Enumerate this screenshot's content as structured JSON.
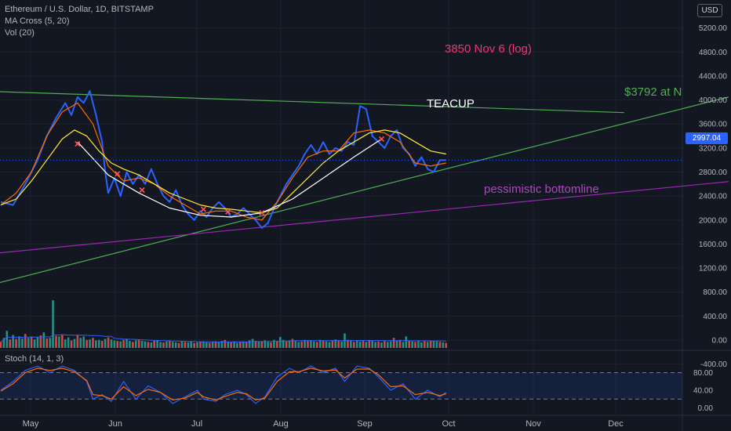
{
  "header": {
    "symbol_line": "Ethereum / U.S. Dollar, 1D, BITSTAMP",
    "ma_line": "MA Cross (5, 20)",
    "vol_line": "Vol (20)",
    "stoch_line": "Stoch (14, 1, 3)",
    "currency_badge": "USD"
  },
  "annotations": {
    "target_note": "3850 Nov 6 (log)",
    "teacup": "TEACUP",
    "trend_target": "$3792 at N",
    "bottomline": "pessimistic bottomline"
  },
  "colors": {
    "background": "#131722",
    "price_line": "#2962ff",
    "ma_fast": "#ff6d00",
    "ma_slow": "#ffeb3b",
    "cup_curve": "#ffffff",
    "trendline": "#4caf50",
    "bottomline": "#9c27b0",
    "target_note": "#f23672",
    "vol_up": "#26a69a",
    "vol_down": "#ef5350",
    "price_badge": "#2962ff"
  },
  "chart_data": {
    "type": "line",
    "x_ticks": [
      "May",
      "Jun",
      "Jul",
      "Aug",
      "Sep",
      "Oct",
      "Nov",
      "Dec"
    ],
    "price_axis": {
      "ticks": [
        5200,
        4800,
        4400,
        4000,
        3600,
        3200,
        2800,
        2400,
        2000,
        1600,
        1200,
        800,
        400,
        0,
        -400
      ],
      "tick_labels": [
        "5200.00",
        "4800.00",
        "4400.00",
        "4000.00",
        "3600.00",
        "3200.00",
        "2800.00",
        "2400.00",
        "2000.00",
        "1600.00",
        "1200.00",
        "800.00",
        "400.00",
        "0.00",
        "-400.00"
      ],
      "ylim": [
        -400,
        5400
      ]
    },
    "last_price": 2997.04,
    "last_price_label": "2997.04",
    "series": [
      {
        "name": "Price",
        "points": [
          [
            0,
            2300
          ],
          [
            4,
            2250
          ],
          [
            8,
            2600
          ],
          [
            12,
            3000
          ],
          [
            15,
            3400
          ],
          [
            18,
            3700
          ],
          [
            21,
            3950
          ],
          [
            23,
            3750
          ],
          [
            25,
            4050
          ],
          [
            27,
            3950
          ],
          [
            29,
            4150
          ],
          [
            31,
            3750
          ],
          [
            33,
            3300
          ],
          [
            34,
            2800
          ],
          [
            35,
            2450
          ],
          [
            37,
            2700
          ],
          [
            39,
            2400
          ],
          [
            41,
            2800
          ],
          [
            43,
            2600
          ],
          [
            45,
            2750
          ],
          [
            47,
            2600
          ],
          [
            49,
            2850
          ],
          [
            51,
            2600
          ],
          [
            53,
            2400
          ],
          [
            55,
            2300
          ],
          [
            57,
            2500
          ],
          [
            59,
            2250
          ],
          [
            61,
            2100
          ],
          [
            63,
            2000
          ],
          [
            65,
            2150
          ],
          [
            67,
            2050
          ],
          [
            69,
            2200
          ],
          [
            71,
            2300
          ],
          [
            73,
            2200
          ],
          [
            75,
            2050
          ],
          [
            77,
            2100
          ],
          [
            79,
            2200
          ],
          [
            81,
            2100
          ],
          [
            83,
            2000
          ],
          [
            85,
            1870
          ],
          [
            87,
            1950
          ],
          [
            89,
            2200
          ],
          [
            91,
            2400
          ],
          [
            93,
            2600
          ],
          [
            95,
            2750
          ],
          [
            97,
            2900
          ],
          [
            99,
            3100
          ],
          [
            101,
            3250
          ],
          [
            103,
            3100
          ],
          [
            105,
            3300
          ],
          [
            107,
            3100
          ],
          [
            109,
            3200
          ],
          [
            111,
            3150
          ],
          [
            113,
            3300
          ],
          [
            115,
            3250
          ],
          [
            117,
            3900
          ],
          [
            119,
            3850
          ],
          [
            121,
            3400
          ],
          [
            123,
            3300
          ],
          [
            125,
            3200
          ],
          [
            127,
            3400
          ],
          [
            129,
            3500
          ],
          [
            131,
            3200
          ],
          [
            133,
            3100
          ],
          [
            135,
            2900
          ],
          [
            137,
            3050
          ],
          [
            139,
            2850
          ],
          [
            141,
            2800
          ],
          [
            143,
            3000
          ],
          [
            145,
            2997
          ]
        ]
      },
      {
        "name": "",
        "points": [
          [
            0,
            2250
          ],
          [
            5,
            2450
          ],
          [
            10,
            2800
          ],
          [
            15,
            3400
          ],
          [
            20,
            3800
          ],
          [
            25,
            3950
          ],
          [
            30,
            3600
          ],
          [
            35,
            2900
          ],
          [
            40,
            2650
          ],
          [
            45,
            2700
          ],
          [
            50,
            2600
          ],
          [
            55,
            2400
          ],
          [
            60,
            2250
          ],
          [
            65,
            2100
          ],
          [
            70,
            2150
          ],
          [
            75,
            2150
          ],
          [
            80,
            2050
          ],
          [
            85,
            2000
          ],
          [
            90,
            2300
          ],
          [
            95,
            2700
          ],
          [
            100,
            3050
          ],
          [
            105,
            3150
          ],
          [
            110,
            3150
          ],
          [
            115,
            3450
          ],
          [
            120,
            3500
          ],
          [
            125,
            3450
          ],
          [
            130,
            3300
          ],
          [
            135,
            2950
          ],
          [
            140,
            2900
          ],
          [
            145,
            2950
          ]
        ]
      },
      {
        "name": "",
        "points": [
          [
            0,
            2250
          ],
          [
            5,
            2350
          ],
          [
            10,
            2650
          ],
          [
            15,
            3000
          ],
          [
            20,
            3350
          ],
          [
            24,
            3500
          ],
          [
            28,
            3400
          ],
          [
            32,
            3150
          ],
          [
            36,
            2950
          ],
          [
            40,
            2850
          ],
          [
            45,
            2750
          ],
          [
            50,
            2600
          ],
          [
            55,
            2450
          ],
          [
            60,
            2350
          ],
          [
            65,
            2250
          ],
          [
            70,
            2200
          ],
          [
            75,
            2180
          ],
          [
            80,
            2150
          ],
          [
            85,
            2120
          ],
          [
            90,
            2200
          ],
          [
            95,
            2450
          ],
          [
            100,
            2700
          ],
          [
            105,
            2950
          ],
          [
            110,
            3150
          ],
          [
            115,
            3300
          ],
          [
            120,
            3450
          ],
          [
            125,
            3500
          ],
          [
            130,
            3450
          ],
          [
            135,
            3300
          ],
          [
            140,
            3150
          ],
          [
            145,
            3100
          ]
        ]
      },
      {
        "name": "",
        "points": [
          [
            25,
            3300
          ],
          [
            35,
            2750
          ],
          [
            45,
            2450
          ],
          [
            55,
            2200
          ],
          [
            65,
            2080
          ],
          [
            75,
            2050
          ],
          [
            85,
            2120
          ],
          [
            95,
            2350
          ],
          [
            105,
            2700
          ],
          [
            115,
            3050
          ],
          [
            124,
            3350
          ]
        ]
      }
    ],
    "cross_markers": [
      [
        25,
        3270
      ],
      [
        38,
        2770
      ],
      [
        46,
        2500
      ],
      [
        66,
        2180
      ],
      [
        74,
        2140
      ],
      [
        85,
        2120
      ],
      [
        124,
        3350
      ]
    ],
    "trendlines": [
      {
        "name": "",
        "from": [
          -1,
          4140
        ],
        "to": [
          203,
          3790
        ]
      },
      {
        "name": "",
        "from": [
          -1,
          950
        ],
        "to": [
          237,
          4050
        ]
      },
      {
        "name": "",
        "from": [
          -1,
          1450
        ],
        "to": [
          237,
          2640
        ]
      }
    ],
    "volume": [
      120,
      200,
      340,
      170,
      260,
      180,
      230,
      190,
      280,
      200,
      230,
      170,
      210,
      250,
      310,
      190,
      200,
      950,
      240,
      230,
      260,
      170,
      210,
      150,
      180,
      260,
      200,
      230,
      160,
      170,
      200,
      150,
      160,
      140,
      180,
      210,
      170,
      150,
      140,
      130,
      160,
      180,
      140,
      120,
      150,
      170,
      140,
      130,
      120,
      110,
      140,
      150,
      120,
      110,
      130,
      150,
      120,
      110,
      100,
      140,
      120,
      110,
      130,
      100,
      110,
      120,
      130,
      110,
      100,
      120,
      130,
      110,
      140,
      160,
      120,
      110,
      130,
      100,
      120,
      130,
      110,
      150,
      180,
      140,
      120,
      130,
      150,
      120,
      110,
      160,
      140,
      220,
      160,
      130,
      150,
      180,
      140,
      120,
      130,
      160,
      140,
      150,
      130,
      120,
      160,
      140,
      130,
      120,
      150,
      170,
      140,
      130,
      290,
      160,
      140,
      120,
      150,
      130,
      140,
      120,
      160,
      140,
      120,
      130,
      110,
      140,
      120,
      130,
      200,
      140,
      160,
      120,
      230,
      140,
      130,
      120,
      150,
      110,
      130,
      120,
      150,
      140,
      130,
      120,
      110,
      100
    ],
    "stochastic": {
      "name": "Stoch (14, 1, 3)",
      "ticks": [
        80,
        40,
        0
      ],
      "tick_labels": [
        "80.00",
        "40.00",
        "0.00"
      ],
      "ylim": [
        -10,
        110
      ],
      "k": [
        [
          0,
          40
        ],
        [
          4,
          60
        ],
        [
          8,
          85
        ],
        [
          12,
          95
        ],
        [
          16,
          80
        ],
        [
          20,
          95
        ],
        [
          24,
          85
        ],
        [
          28,
          60
        ],
        [
          30,
          20
        ],
        [
          33,
          30
        ],
        [
          36,
          15
        ],
        [
          40,
          60
        ],
        [
          44,
          20
        ],
        [
          48,
          50
        ],
        [
          52,
          35
        ],
        [
          56,
          10
        ],
        [
          60,
          25
        ],
        [
          64,
          40
        ],
        [
          66,
          20
        ],
        [
          70,
          15
        ],
        [
          73,
          30
        ],
        [
          77,
          40
        ],
        [
          80,
          30
        ],
        [
          83,
          10
        ],
        [
          86,
          25
        ],
        [
          90,
          70
        ],
        [
          94,
          90
        ],
        [
          97,
          80
        ],
        [
          101,
          95
        ],
        [
          105,
          80
        ],
        [
          109,
          90
        ],
        [
          112,
          60
        ],
        [
          116,
          95
        ],
        [
          120,
          90
        ],
        [
          123,
          70
        ],
        [
          127,
          40
        ],
        [
          131,
          55
        ],
        [
          135,
          20
        ],
        [
          139,
          40
        ],
        [
          143,
          25
        ],
        [
          145,
          35
        ]
      ],
      "d": [
        [
          0,
          38
        ],
        [
          4,
          55
        ],
        [
          8,
          80
        ],
        [
          12,
          90
        ],
        [
          16,
          85
        ],
        [
          20,
          90
        ],
        [
          24,
          82
        ],
        [
          28,
          62
        ],
        [
          30,
          30
        ],
        [
          33,
          28
        ],
        [
          36,
          20
        ],
        [
          40,
          48
        ],
        [
          44,
          28
        ],
        [
          48,
          42
        ],
        [
          52,
          35
        ],
        [
          56,
          18
        ],
        [
          60,
          22
        ],
        [
          64,
          35
        ],
        [
          66,
          25
        ],
        [
          70,
          18
        ],
        [
          73,
          26
        ],
        [
          77,
          35
        ],
        [
          80,
          32
        ],
        [
          83,
          18
        ],
        [
          86,
          22
        ],
        [
          90,
          60
        ],
        [
          94,
          82
        ],
        [
          97,
          82
        ],
        [
          101,
          90
        ],
        [
          105,
          84
        ],
        [
          109,
          86
        ],
        [
          112,
          68
        ],
        [
          116,
          88
        ],
        [
          120,
          88
        ],
        [
          123,
          75
        ],
        [
          127,
          48
        ],
        [
          131,
          50
        ],
        [
          135,
          30
        ],
        [
          139,
          35
        ],
        [
          143,
          28
        ],
        [
          145,
          32
        ]
      ]
    }
  }
}
